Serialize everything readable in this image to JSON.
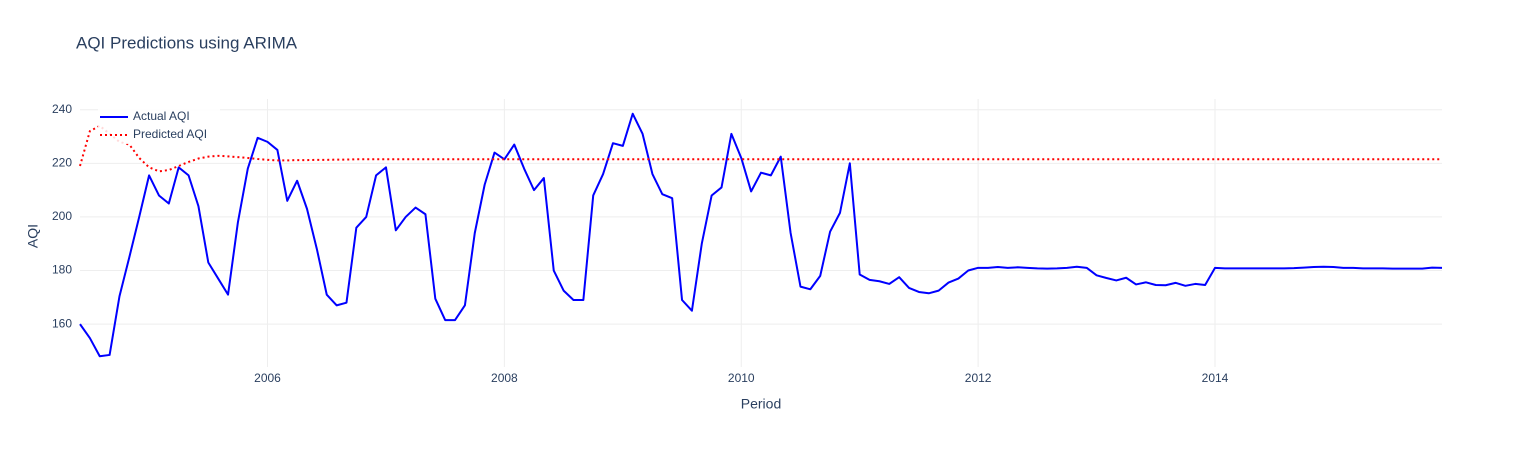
{
  "chart_data": {
    "type": "line",
    "title": "AQI Predictions using ARIMA",
    "x_label": "Period",
    "y_label": "AQI",
    "x": [
      "2004-06",
      "2004-07",
      "2004-08",
      "2004-09",
      "2004-10",
      "2004-11",
      "2004-12",
      "2005-01",
      "2005-02",
      "2005-03",
      "2005-04",
      "2005-05",
      "2005-06",
      "2005-07",
      "2005-08",
      "2005-09",
      "2005-10",
      "2005-11",
      "2005-12",
      "2006-01",
      "2006-02",
      "2006-03",
      "2006-04",
      "2006-05",
      "2006-06",
      "2006-07",
      "2006-08",
      "2006-09",
      "2006-10",
      "2006-11",
      "2006-12",
      "2007-01",
      "2007-02",
      "2007-03",
      "2007-04",
      "2007-05",
      "2007-06",
      "2007-07",
      "2007-08",
      "2007-09",
      "2007-10",
      "2007-11",
      "2007-12",
      "2008-01",
      "2008-02",
      "2008-03",
      "2008-04",
      "2008-05",
      "2008-06",
      "2008-07",
      "2008-08",
      "2008-09",
      "2008-10",
      "2008-11",
      "2008-12",
      "2009-01",
      "2009-02",
      "2009-03",
      "2009-04",
      "2009-05",
      "2009-06",
      "2009-07",
      "2009-08",
      "2009-09",
      "2009-10",
      "2009-11",
      "2009-12",
      "2010-01",
      "2010-02",
      "2010-03",
      "2010-04",
      "2010-05",
      "2010-06",
      "2010-07",
      "2010-08",
      "2010-09",
      "2010-10",
      "2010-11",
      "2010-12",
      "2011-01",
      "2011-02",
      "2011-03",
      "2011-04",
      "2011-05",
      "2011-06",
      "2011-07",
      "2011-08",
      "2011-09",
      "2011-10",
      "2011-11",
      "2011-12",
      "2012-01",
      "2012-02",
      "2012-03",
      "2012-04",
      "2012-05",
      "2012-06",
      "2012-07",
      "2012-08",
      "2012-09",
      "2012-10",
      "2012-11",
      "2012-12",
      "2013-01",
      "2013-02",
      "2013-03",
      "2013-04",
      "2013-05",
      "2013-06",
      "2013-07",
      "2013-08",
      "2013-09",
      "2013-10",
      "2013-11",
      "2013-12",
      "2014-01",
      "2014-02",
      "2014-03",
      "2014-04",
      "2014-05",
      "2014-06",
      "2014-07",
      "2014-08",
      "2014-09",
      "2014-10",
      "2014-11",
      "2014-12",
      "2015-01",
      "2015-02",
      "2015-03",
      "2015-04",
      "2015-05",
      "2015-06",
      "2015-07",
      "2015-08",
      "2015-09",
      "2015-10",
      "2015-11",
      "2015-12"
    ],
    "series": [
      {
        "name": "Actual AQI",
        "color": "#0000ff",
        "dash": "solid",
        "values": [
          160,
          154.8,
          148,
          148.5,
          170.4,
          185,
          200,
          215.5,
          208,
          205,
          218.5,
          215.5,
          204,
          183,
          177,
          171,
          198,
          218,
          229.5,
          228,
          225,
          206,
          213.5,
          203,
          188,
          171,
          167,
          168,
          196,
          200,
          215.5,
          218.5,
          195,
          200,
          203.5,
          201,
          169.5,
          161.5,
          161.5,
          167,
          194,
          212,
          224,
          221.5,
          227,
          218,
          210,
          214.5,
          180,
          172.5,
          169,
          169,
          208,
          216,
          227.5,
          226.5,
          238.5,
          231,
          216,
          208.5,
          207,
          169,
          165,
          190,
          208,
          211,
          231,
          222,
          209.5,
          216.5,
          215.5,
          222.5,
          194,
          174,
          173,
          178,
          194.5,
          201.5,
          220,
          178.5,
          176.5,
          176,
          175,
          177.5,
          173.5,
          172,
          171.5,
          172.5,
          175.5,
          177,
          180,
          181,
          181,
          181.3,
          181,
          181.2,
          181,
          180.8,
          180.7,
          180.8,
          181,
          181.4,
          181,
          178.2,
          177.2,
          176.3,
          177.3,
          174.8,
          175.6,
          174.6,
          174.5,
          175.4,
          174.3,
          175,
          174.6,
          181,
          180.8,
          180.8,
          180.8,
          180.8,
          180.8,
          180.8,
          180.8,
          180.9,
          181.1,
          181.3,
          181.4,
          181.3,
          181,
          181,
          180.8,
          180.8,
          180.8,
          180.7,
          180.7,
          180.7,
          180.7,
          181.1,
          181
        ]
      },
      {
        "name": "Predicted AQI",
        "color": "#ff0000",
        "dash": "dot",
        "values": [
          219,
          232,
          234,
          231,
          228,
          227,
          222,
          218.5,
          217,
          217.5,
          219,
          220.5,
          221.8,
          222.5,
          222.8,
          222.6,
          222.3,
          222,
          221.6,
          221.3,
          221.1,
          221.1,
          221.2,
          221.2,
          221.3,
          221.3,
          221.4,
          221.4,
          221.5,
          221.5,
          221.5,
          221.5,
          221.5,
          221.5,
          221.5,
          221.5,
          221.5,
          221.5,
          221.5,
          221.5,
          221.5,
          221.5,
          221.5,
          221.5,
          221.5,
          221.5,
          221.5,
          221.5,
          221.5,
          221.5,
          221.5,
          221.5,
          221.5,
          221.5,
          221.5,
          221.5,
          221.5,
          221.5,
          221.5,
          221.5,
          221.5,
          221.5,
          221.5,
          221.5,
          221.5,
          221.5,
          221.5,
          221.5,
          221.5,
          221.5,
          221.5,
          221.5,
          221.5,
          221.5,
          221.5,
          221.5,
          221.5,
          221.5,
          221.5,
          221.5,
          221.5,
          221.5,
          221.5,
          221.5,
          221.5,
          221.5,
          221.5,
          221.5,
          221.5,
          221.5,
          221.5,
          221.5,
          221.5,
          221.5,
          221.5,
          221.5,
          221.5,
          221.5,
          221.5,
          221.5,
          221.5,
          221.5,
          221.5,
          221.5,
          221.5,
          221.5,
          221.5,
          221.5,
          221.5,
          221.5,
          221.5,
          221.5,
          221.5,
          221.5,
          221.5,
          221.5,
          221.5,
          221.5,
          221.5,
          221.5,
          221.5,
          221.5,
          221.5,
          221.5,
          221.5,
          221.5,
          221.5,
          221.5,
          221.5,
          221.5,
          221.5,
          221.5,
          221.5,
          221.5,
          221.5,
          221.5,
          221.5,
          221.5,
          221.5
        ]
      }
    ],
    "xlim": [
      "2004-06",
      "2015-12"
    ],
    "xticks": [
      2006,
      2008,
      2010,
      2012,
      2014
    ],
    "ylim": [
      144,
      244
    ],
    "yticks": [
      160,
      180,
      200,
      220,
      240
    ],
    "grid": true,
    "legend": "top-left"
  }
}
